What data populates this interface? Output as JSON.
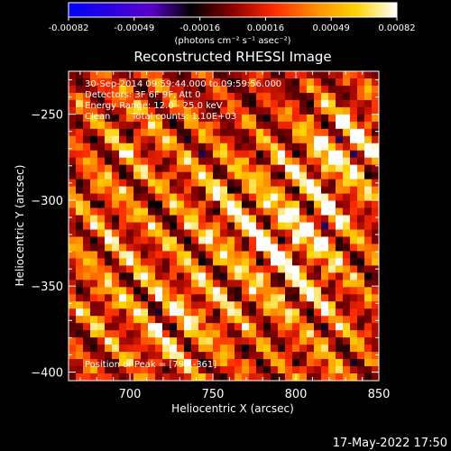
{
  "colorbar": {
    "ticks": [
      "-0.00082",
      "-0.00049",
      "-0.00016",
      "0.00016",
      "0.00049",
      "0.00082"
    ],
    "range": [
      -0.00082,
      0.00082
    ],
    "units_label": "(photons cm⁻² s⁻¹ asec⁻²)",
    "colormap": [
      "#0000ff",
      "#2a00e0",
      "#5a00c8",
      "#000000",
      "#8b0000",
      "#ff2a00",
      "#ff8c00",
      "#ffd200",
      "#ffffff"
    ]
  },
  "chart_data": {
    "type": "heatmap",
    "title": "Reconstructed RHESSI Image",
    "xlabel": "Heliocentric X (arcsec)",
    "ylabel": "Heliocentric Y (arcsec)",
    "xlim": [
      663,
      850
    ],
    "ylim": [
      -405,
      -225
    ],
    "xticks": [
      700,
      750,
      800,
      850
    ],
    "yticks": [
      -250,
      -300,
      -350,
      -400
    ],
    "xtick_labels": [
      "700",
      "750",
      "800",
      "850"
    ],
    "ytick_labels": [
      "−250",
      "−300",
      "−350",
      "−400"
    ],
    "annotations": {
      "time_range": "30-Sep-2014 09:59:44.000 to 09:59:56.000",
      "detectors": "Detectors: 3F 6F 9F, Att 0",
      "energy_range": "Energy Range: 12.0 - 25.0 keV",
      "clean": "Clean",
      "total_counts": "Total counts: 1.10E+03",
      "peak": "Position of Peak = [797,-361]"
    },
    "peak_position": [
      797,
      -361
    ],
    "grid": false
  },
  "footer": {
    "timestamp": "17-May-2022 17:50"
  }
}
